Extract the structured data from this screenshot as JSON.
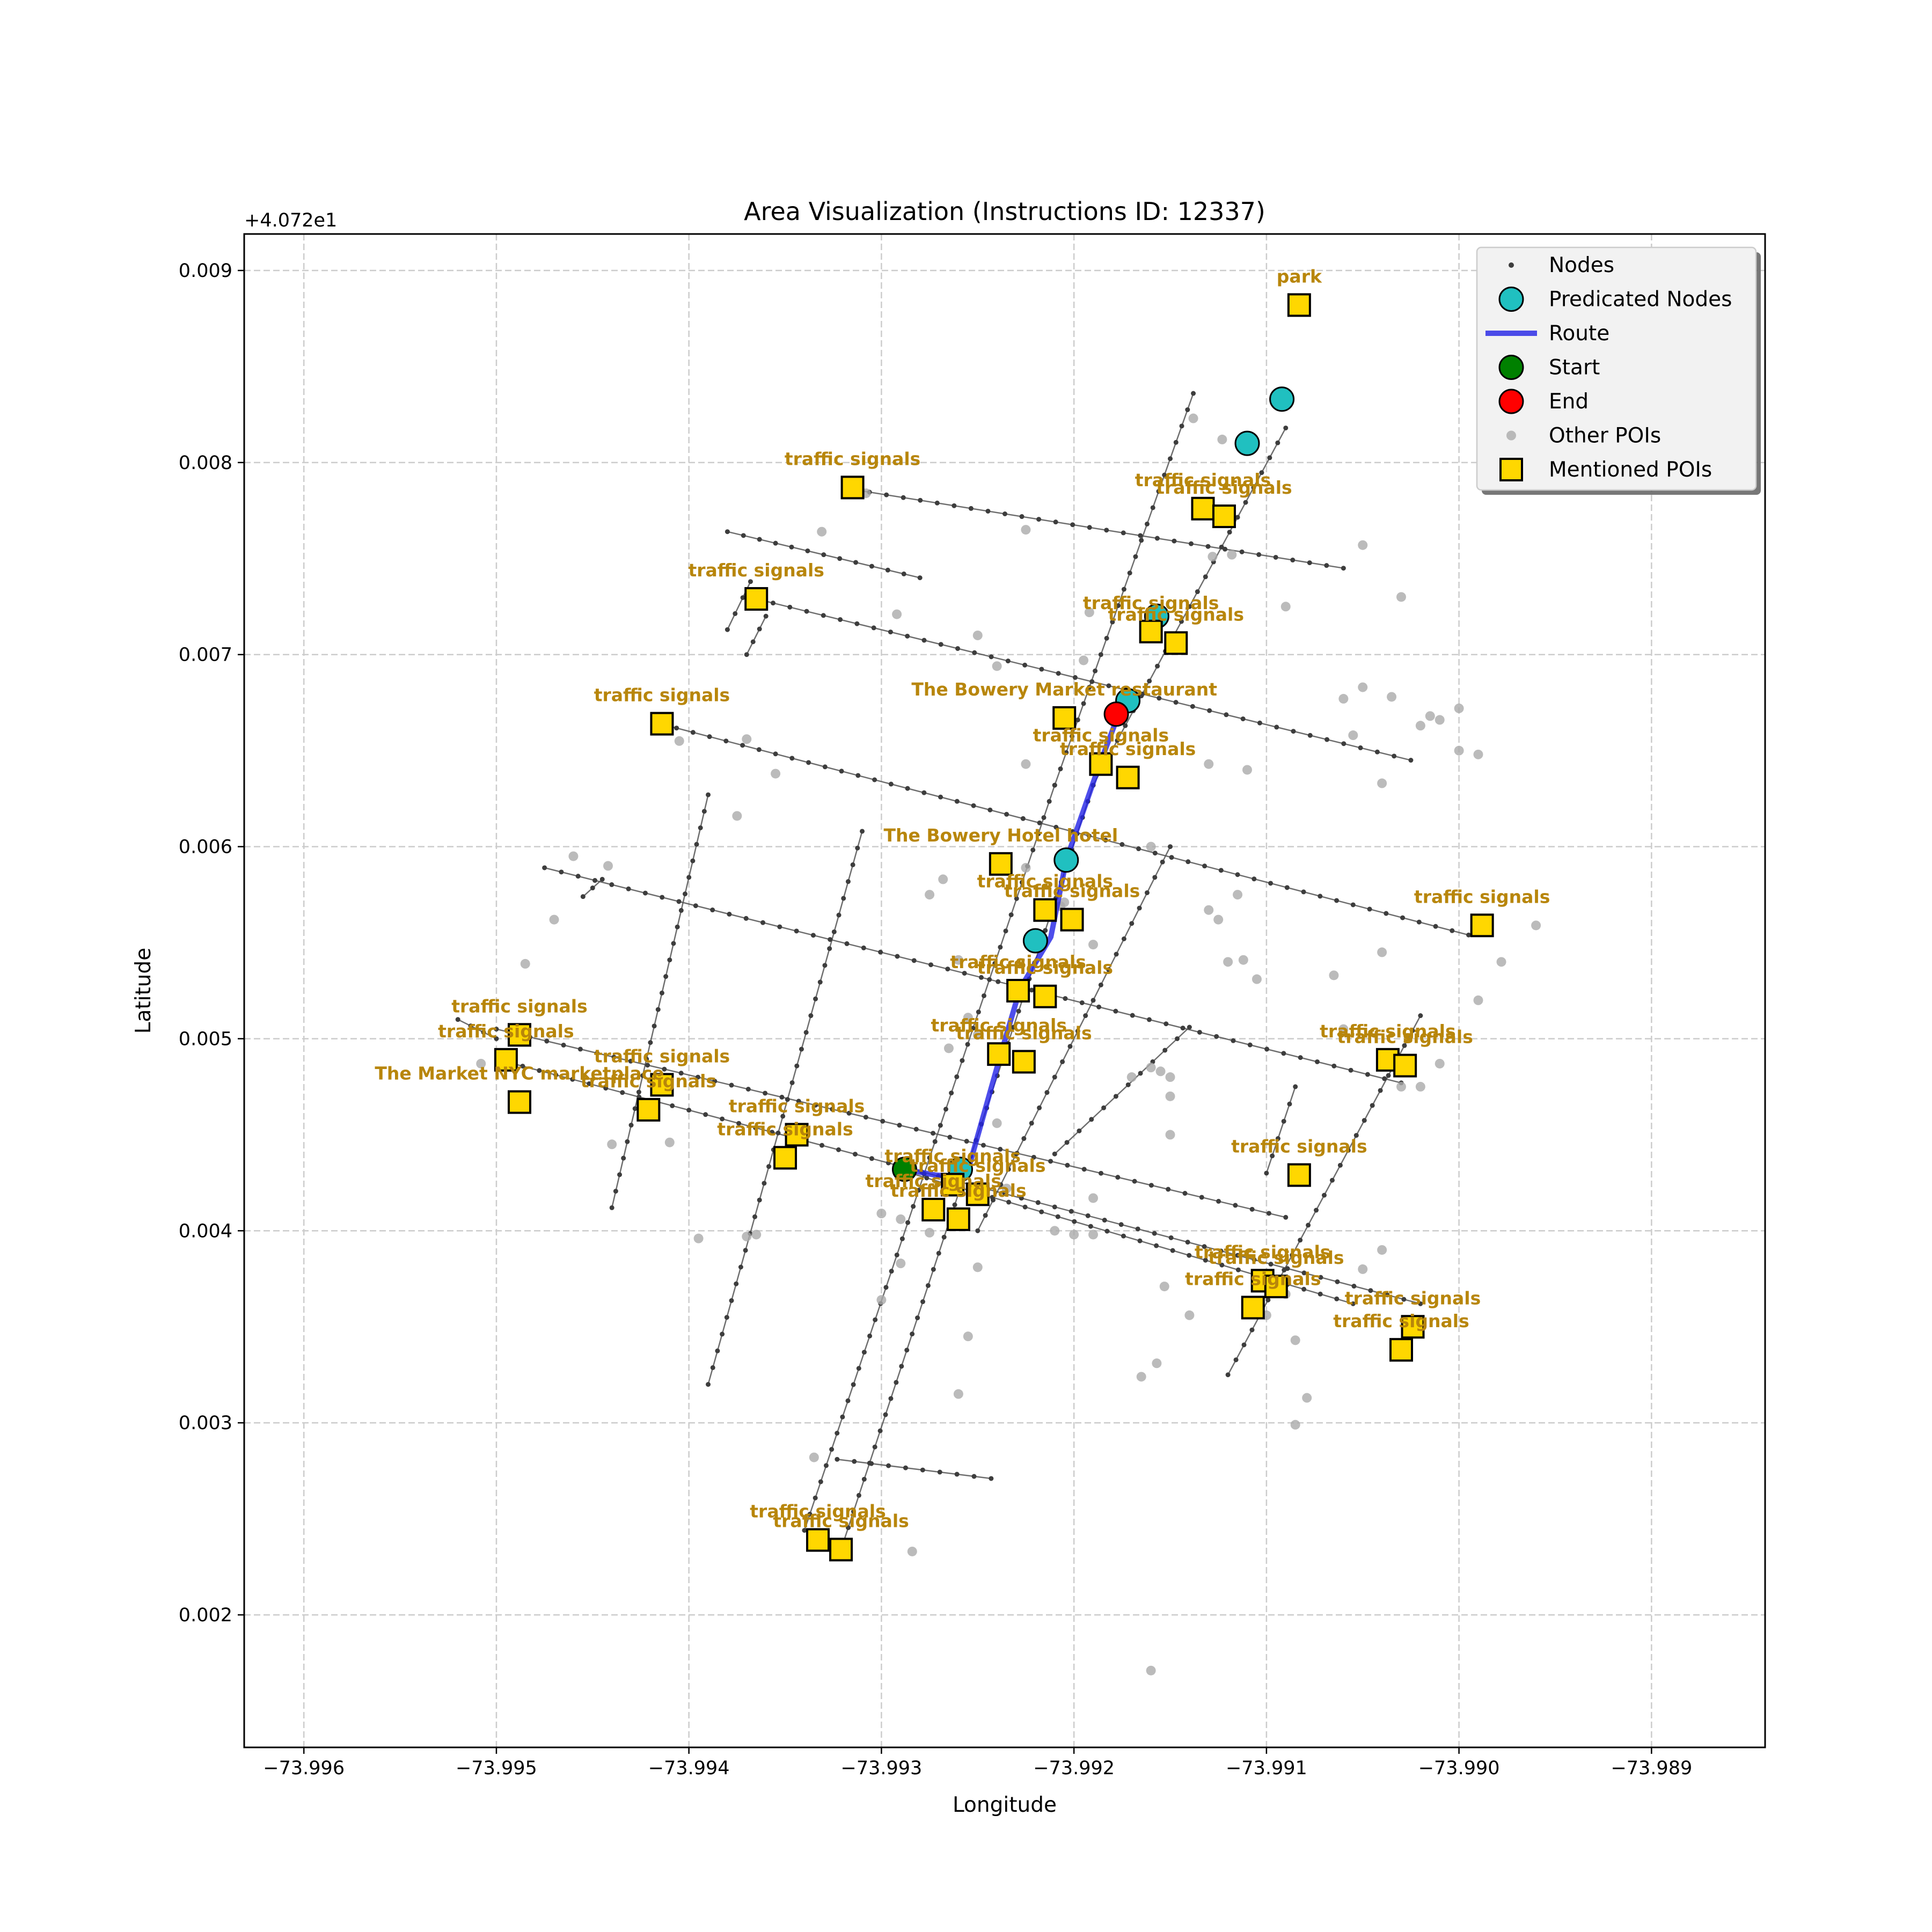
{
  "chart_data": {
    "type": "scatter",
    "title": "Area Visualization (Instructions ID: 12337)",
    "xlabel": "Longitude",
    "ylabel": "Latitude",
    "y_offset_text": "+4.072e1",
    "y_offset": 40.72,
    "xlim": [
      -73.99631,
      -73.98841
    ],
    "ylim": [
      0.00131,
      0.00919
    ],
    "xticks": [
      -73.996,
      -73.995,
      -73.994,
      -73.993,
      -73.992,
      -73.991,
      -73.99,
      -73.989
    ],
    "xtick_labels": [
      "−73.996",
      "−73.995",
      "−73.994",
      "−73.993",
      "−73.992",
      "−73.991",
      "−73.990",
      "−73.989"
    ],
    "yticks": [
      0.002,
      0.003,
      0.004,
      0.005,
      0.006,
      0.007,
      0.008,
      0.009
    ],
    "ytick_labels": [
      "0.002",
      "0.003",
      "0.004",
      "0.005",
      "0.006",
      "0.007",
      "0.008",
      "0.009"
    ],
    "grid": true,
    "legend": {
      "placement": "top-right",
      "entries": [
        "Nodes",
        "Predicated Nodes",
        "Route",
        "Start",
        "End",
        "Other POIs",
        "Mentioned POIs"
      ]
    },
    "colors": {
      "node": "#3d3d3d",
      "predicated": "#20c0c0",
      "route": "#2222e6",
      "start": "#008000",
      "end": "#ff0000",
      "other_poi": "#aaaaaa",
      "mentioned_poi": "#ffd700",
      "poi_label": "#b8860b",
      "grid": "#cccccc"
    },
    "streets": [
      [
        [
          -73.99315,
          0.00786
        ],
        [
          -73.9906,
          0.00745
        ]
      ],
      [
        [
          -73.99365,
          0.00729
        ],
        [
          -73.99025,
          0.00645
        ]
      ],
      [
        [
          -73.99415,
          0.00664
        ],
        [
          -73.98995,
          0.00554
        ]
      ],
      [
        [
          -73.99475,
          0.00589
        ],
        [
          -73.9903,
          0.00477
        ]
      ],
      [
        [
          -73.995,
          0.00505
        ],
        [
          -73.9909,
          0.00407
        ]
      ],
      [
        [
          -73.99495,
          0.00488
        ],
        [
          -73.9902,
          0.00362
        ]
      ],
      [
        [
          -73.99285,
          0.0043
        ],
        [
          -73.99055,
          0.00362
        ]
      ],
      [
        [
          -73.99323,
          0.00281
        ],
        [
          -73.99243,
          0.00271
        ]
      ],
      [
        [
          -73.99138,
          0.00836
        ],
        [
          -73.9921,
          0.00632
        ]
      ],
      [
        [
          -73.9921,
          0.00632
        ],
        [
          -73.9934,
          0.00244
        ]
      ],
      [
        [
          -73.9909,
          0.00818
        ],
        [
          -73.9919,
          0.00632
        ]
      ],
      [
        [
          -73.9919,
          0.00632
        ],
        [
          -73.9932,
          0.00237
        ]
      ],
      [
        [
          -73.9939,
          0.00627
        ],
        [
          -73.9944,
          0.00412
        ]
      ],
      [
        [
          -73.9931,
          0.00608
        ],
        [
          -73.9939,
          0.0032
        ]
      ],
      [
        [
          -73.9915,
          0.006
        ],
        [
          -73.9925,
          0.004
        ]
      ],
      [
        [
          -73.9938,
          0.00764
        ],
        [
          -73.9928,
          0.0074
        ]
      ],
      [
        [
          -73.99368,
          0.00738
        ],
        [
          -73.9938,
          0.00713
        ]
      ],
      [
        [
          -73.9936,
          0.0072
        ],
        [
          -73.9937,
          0.007
        ]
      ],
      [
        [
          -73.9914,
          0.00506
        ],
        [
          -73.9921,
          0.0044
        ]
      ],
      [
        [
          -73.9902,
          0.00512
        ],
        [
          -73.9912,
          0.00325
        ]
      ],
      [
        [
          -73.99085,
          0.00475
        ],
        [
          -73.991,
          0.0043
        ]
      ],
      [
        [
          -73.99445,
          0.00583
        ],
        [
          -73.99455,
          0.00574
        ]
      ],
      [
        [
          -73.9952,
          0.0051
        ],
        [
          -73.995,
          0.005
        ]
      ]
    ],
    "nodes_note": "Nodes are drawn as small dark dots along each street segment",
    "route": [
      [
        -73.99288,
        0.00432
      ],
      [
        -73.99272,
        0.00429
      ],
      [
        -73.99256,
        0.00428
      ],
      [
        -73.99238,
        0.00492
      ],
      [
        -73.99228,
        0.00526
      ],
      [
        -73.99212,
        0.00553
      ],
      [
        -73.99204,
        0.00593
      ],
      [
        -73.99187,
        0.00642
      ],
      [
        -73.99176,
        0.00671
      ],
      [
        -73.99168,
        0.00676
      ]
    ],
    "predicated_nodes": [
      [
        -73.99092,
        0.00833
      ],
      [
        -73.9911,
        0.0081
      ],
      [
        -73.99157,
        0.0072
      ],
      [
        -73.99172,
        0.00676
      ],
      [
        -73.99204,
        0.00593
      ],
      [
        -73.9922,
        0.00551
      ],
      [
        -73.99259,
        0.00432
      ]
    ],
    "start": [
      -73.99288,
      0.00432
    ],
    "end": [
      -73.99178,
      0.00669
    ],
    "other_pois": [
      [
        -73.99308,
        0.00784
      ],
      [
        -73.99331,
        0.00764
      ],
      [
        -73.9925,
        0.0071
      ],
      [
        -73.99292,
        0.00721
      ],
      [
        -73.99192,
        0.00722
      ],
      [
        -73.99225,
        0.00765
      ],
      [
        -73.99128,
        0.00751
      ],
      [
        -73.99118,
        0.00752
      ],
      [
        -73.99138,
        0.00823
      ],
      [
        -73.99123,
        0.00812
      ],
      [
        -73.9905,
        0.00757
      ],
      [
        -73.9905,
        0.00683
      ],
      [
        -73.99035,
        0.00678
      ],
      [
        -73.9906,
        0.00677
      ],
      [
        -73.9909,
        0.00725
      ],
      [
        -73.9903,
        0.0073
      ],
      [
        -73.9902,
        0.00663
      ],
      [
        -73.99015,
        0.00668
      ],
      [
        -73.99,
        0.00672
      ],
      [
        -73.9901,
        0.00666
      ],
      [
        -73.99055,
        0.00658
      ],
      [
        -73.9904,
        0.00633
      ],
      [
        -73.9911,
        0.0064
      ],
      [
        -73.99,
        0.0065
      ],
      [
        -73.9899,
        0.00648
      ],
      [
        -73.9913,
        0.00567
      ],
      [
        -73.99125,
        0.00562
      ],
      [
        -73.99112,
        0.00541
      ],
      [
        -73.99105,
        0.00531
      ],
      [
        -73.9912,
        0.0054
      ],
      [
        -73.98978,
        0.0054
      ],
      [
        -73.9899,
        0.0052
      ],
      [
        -73.9896,
        0.00559
      ],
      [
        -73.9904,
        0.00545
      ],
      [
        -73.99065,
        0.00533
      ],
      [
        -73.9903,
        0.00475
      ],
      [
        -73.9902,
        0.00475
      ],
      [
        -73.9901,
        0.00487
      ],
      [
        -73.9906,
        0.00505
      ],
      [
        -73.9916,
        0.00485
      ],
      [
        -73.99155,
        0.00483
      ],
      [
        -73.9915,
        0.0048
      ],
      [
        -73.9917,
        0.0048
      ],
      [
        -73.9915,
        0.0047
      ],
      [
        -73.9915,
        0.0045
      ],
      [
        -73.9919,
        0.00417
      ],
      [
        -73.99235,
        0.00422
      ],
      [
        -73.9924,
        0.00456
      ],
      [
        -73.9919,
        0.00398
      ],
      [
        -73.992,
        0.00398
      ],
      [
        -73.9921,
        0.004
      ],
      [
        -73.99153,
        0.00371
      ],
      [
        -73.9914,
        0.00356
      ],
      [
        -73.99157,
        0.00331
      ],
      [
        -73.99165,
        0.00324
      ],
      [
        -73.9909,
        0.00367
      ],
      [
        -73.991,
        0.00356
      ],
      [
        -73.99085,
        0.00343
      ],
      [
        -73.99079,
        0.00313
      ],
      [
        -73.99085,
        0.00299
      ],
      [
        -73.9904,
        0.0039
      ],
      [
        -73.9905,
        0.0038
      ],
      [
        -73.9916,
        0.00171
      ],
      [
        -73.9929,
        0.00406
      ],
      [
        -73.99265,
        0.00421
      ],
      [
        -73.993,
        0.00409
      ],
      [
        -73.9925,
        0.00381
      ],
      [
        -73.99255,
        0.00345
      ],
      [
        -73.9926,
        0.00315
      ],
      [
        -73.99275,
        0.00399
      ],
      [
        -73.99335,
        0.00282
      ],
      [
        -73.99284,
        0.00233
      ],
      [
        -73.9929,
        0.00383
      ],
      [
        -73.993,
        0.00364
      ],
      [
        -73.99365,
        0.00398
      ],
      [
        -73.9937,
        0.00397
      ],
      [
        -73.99395,
        0.00396
      ],
      [
        -73.9941,
        0.00446
      ],
      [
        -73.9942,
        0.0046
      ],
      [
        -73.9944,
        0.00445
      ],
      [
        -73.99508,
        0.00487
      ],
      [
        -73.99485,
        0.00539
      ],
      [
        -73.9947,
        0.00562
      ],
      [
        -73.9946,
        0.00595
      ],
      [
        -73.99442,
        0.0059
      ],
      [
        -73.99405,
        0.00655
      ],
      [
        -73.9937,
        0.00656
      ],
      [
        -73.99375,
        0.00616
      ],
      [
        -73.99355,
        0.00638
      ],
      [
        -73.99268,
        0.00583
      ],
      [
        -73.99275,
        0.00575
      ],
      [
        -73.9926,
        0.00541
      ],
      [
        -73.99255,
        0.00511
      ],
      [
        -73.99265,
        0.00495
      ],
      [
        -73.9925,
        0.00502
      ],
      [
        -73.99225,
        0.00589
      ],
      [
        -73.99207,
        0.00569
      ],
      [
        -73.9919,
        0.00549
      ],
      [
        -73.99205,
        0.00571
      ],
      [
        -73.9916,
        0.006
      ],
      [
        -73.99225,
        0.00643
      ],
      [
        -73.9924,
        0.00694
      ],
      [
        -73.9913,
        0.00643
      ],
      [
        -73.99115,
        0.00575
      ],
      [
        -73.99195,
        0.00697
      ]
    ],
    "mentioned_pois": [
      {
        "name": "park",
        "lon": -73.99083,
        "lat": 0.00882
      },
      {
        "name": "traffic signals",
        "lon": -73.99315,
        "lat": 0.00787
      },
      {
        "name": "traffic signals",
        "lon": -73.99133,
        "lat": 0.00776
      },
      {
        "name": "traffic signals",
        "lon": -73.99122,
        "lat": 0.00772
      },
      {
        "name": "traffic signals",
        "lon": -73.99365,
        "lat": 0.00729
      },
      {
        "name": "traffic signals",
        "lon": -73.9916,
        "lat": 0.00712
      },
      {
        "name": "traffic signals",
        "lon": -73.99147,
        "lat": 0.00706
      },
      {
        "name": "The Bowery Market restaurant",
        "lon": -73.99205,
        "lat": 0.00667
      },
      {
        "name": "traffic signals",
        "lon": -73.99414,
        "lat": 0.00664
      },
      {
        "name": "traffic signals",
        "lon": -73.99186,
        "lat": 0.00643
      },
      {
        "name": "traffic signals",
        "lon": -73.99172,
        "lat": 0.00636
      },
      {
        "name": "The Bowery Hotel   hotel",
        "lon": -73.99238,
        "lat": 0.00591
      },
      {
        "name": "traffic signals",
        "lon": -73.99215,
        "lat": 0.00567
      },
      {
        "name": "traffic signals",
        "lon": -73.99201,
        "lat": 0.00562
      },
      {
        "name": "traffic signals",
        "lon": -73.98988,
        "lat": 0.00559
      },
      {
        "name": "traffic signals",
        "lon": -73.99229,
        "lat": 0.00525
      },
      {
        "name": "traffic signals",
        "lon": -73.99215,
        "lat": 0.00522
      },
      {
        "name": "traffic signals",
        "lon": -73.99488,
        "lat": 0.00502
      },
      {
        "name": "traffic signals",
        "lon": -73.99495,
        "lat": 0.00489
      },
      {
        "name": "traffic signals",
        "lon": -73.99239,
        "lat": 0.00492
      },
      {
        "name": "traffic signals",
        "lon": -73.99226,
        "lat": 0.00488
      },
      {
        "name": "traffic signals",
        "lon": -73.99037,
        "lat": 0.00489
      },
      {
        "name": "traffic signals",
        "lon": -73.99028,
        "lat": 0.00486
      },
      {
        "name": "traffic signals",
        "lon": -73.99414,
        "lat": 0.00476
      },
      {
        "name": "The Market NYC marketplace",
        "lon": -73.99488,
        "lat": 0.00467
      },
      {
        "name": "traffic signals",
        "lon": -73.99421,
        "lat": 0.00463
      },
      {
        "name": "traffic signals",
        "lon": -73.99344,
        "lat": 0.0045
      },
      {
        "name": "traffic signals",
        "lon": -73.9935,
        "lat": 0.00438
      },
      {
        "name": "traffic signals",
        "lon": -73.99083,
        "lat": 0.00429
      },
      {
        "name": "traffic signals",
        "lon": -73.99263,
        "lat": 0.00424
      },
      {
        "name": "traffic signals",
        "lon": -73.9925,
        "lat": 0.00419
      },
      {
        "name": "traffic signals",
        "lon": -73.99273,
        "lat": 0.00411
      },
      {
        "name": "traffic signals",
        "lon": -73.9926,
        "lat": 0.00406
      },
      {
        "name": "traffic signals",
        "lon": -73.99102,
        "lat": 0.00374
      },
      {
        "name": "traffic signals",
        "lon": -73.99095,
        "lat": 0.00371
      },
      {
        "name": "traffic signals",
        "lon": -73.99107,
        "lat": 0.0036
      },
      {
        "name": "traffic signals",
        "lon": -73.99024,
        "lat": 0.0035
      },
      {
        "name": "traffic signals",
        "lon": -73.9903,
        "lat": 0.00338
      },
      {
        "name": "traffic signals",
        "lon": -73.99333,
        "lat": 0.00239
      },
      {
        "name": "traffic signals",
        "lon": -73.99321,
        "lat": 0.00234
      }
    ]
  }
}
